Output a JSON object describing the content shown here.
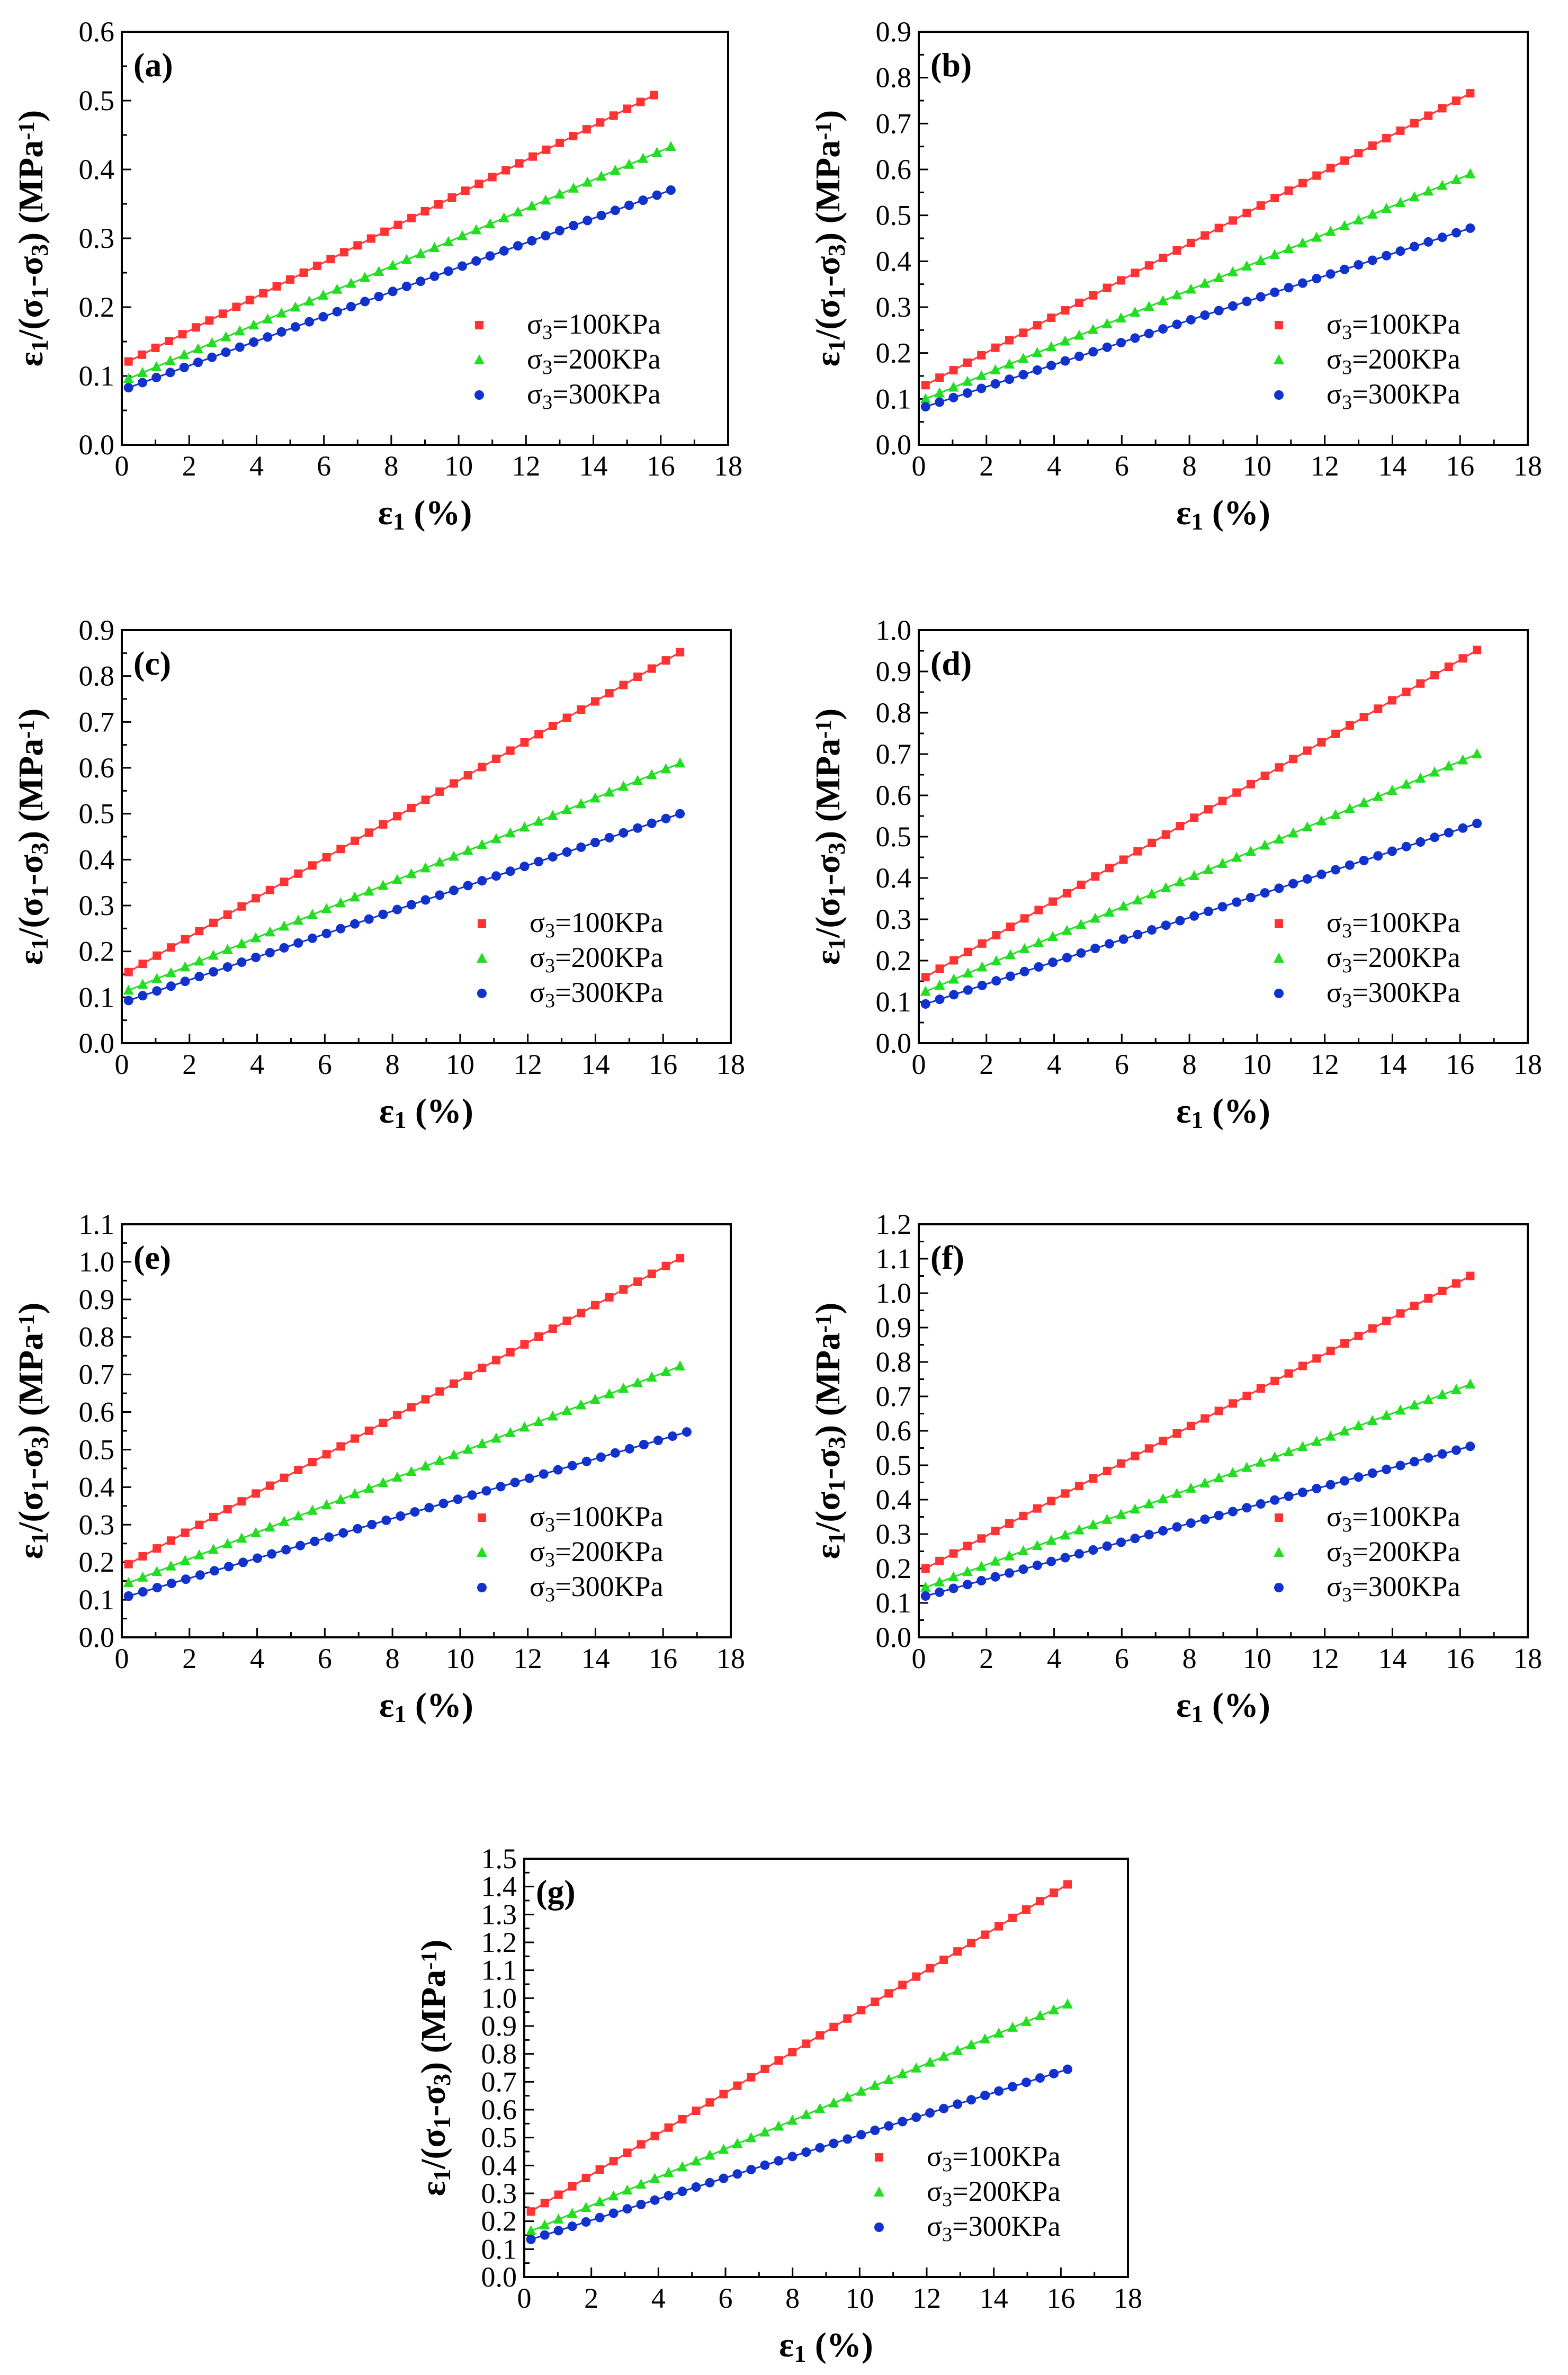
{
  "chart_data": [
    {
      "type": "scatter",
      "panel_label": "(a)",
      "xlabel": "ε1 (%)",
      "ylabel": "ε1/(σ1-σ3) (MPa-1)",
      "xlim": [
        0,
        18
      ],
      "ylim": [
        0,
        0.6
      ],
      "xticks": [
        "0",
        "2",
        "4",
        "6",
        "8",
        "10",
        "12",
        "14",
        "16",
        "18"
      ],
      "yticks": [
        "0.0",
        "0.1",
        "0.2",
        "0.3",
        "0.4",
        "0.5",
        "0.6"
      ],
      "legend_position": "bottom-right",
      "series": [
        {
          "name": "σ3=100KPa",
          "marker": "square",
          "color": "#ff3333",
          "x_start": 0.2,
          "x_end": 15.8,
          "y_start": 0.121,
          "y_end": 0.508
        },
        {
          "name": "σ3=200KPa",
          "marker": "triangle",
          "color": "#22dd22",
          "x_start": 0.2,
          "x_end": 16.3,
          "y_start": 0.096,
          "y_end": 0.433
        },
        {
          "name": "σ3=300KPa",
          "marker": "circle",
          "color": "#1133cc",
          "x_start": 0.2,
          "x_end": 16.3,
          "y_start": 0.083,
          "y_end": 0.37
        }
      ]
    },
    {
      "type": "scatter",
      "panel_label": "(b)",
      "xlabel": "ε1 (%)",
      "ylabel": "ε1/(σ1-σ3) (MPa-1)",
      "xlim": [
        0,
        18
      ],
      "ylim": [
        0,
        0.9
      ],
      "xticks": [
        "0",
        "2",
        "4",
        "6",
        "8",
        "10",
        "12",
        "14",
        "16",
        "18"
      ],
      "yticks": [
        "0.0",
        "0.1",
        "0.2",
        "0.3",
        "0.4",
        "0.5",
        "0.6",
        "0.7",
        "0.8",
        "0.9"
      ],
      "legend_position": "bottom-right",
      "series": [
        {
          "name": "σ3=100KPa",
          "marker": "square",
          "color": "#ff3333",
          "x_start": 0.2,
          "x_end": 16.3,
          "y_start": 0.13,
          "y_end": 0.766
        },
        {
          "name": "σ3=200KPa",
          "marker": "triangle",
          "color": "#22dd22",
          "x_start": 0.2,
          "x_end": 16.3,
          "y_start": 0.1,
          "y_end": 0.59
        },
        {
          "name": "σ3=300KPa",
          "marker": "circle",
          "color": "#1133cc",
          "x_start": 0.2,
          "x_end": 16.3,
          "y_start": 0.083,
          "y_end": 0.472
        }
      ]
    },
    {
      "type": "scatter",
      "panel_label": "(c)",
      "xlabel": "ε1 (%)",
      "ylabel": "ε1/(σ1-σ3) (MPa-1)",
      "xlim": [
        0,
        18
      ],
      "ylim": [
        0,
        0.9
      ],
      "xticks": [
        "0",
        "2",
        "4",
        "6",
        "8",
        "10",
        "12",
        "14",
        "16",
        "18"
      ],
      "yticks": [
        "0.0",
        "0.1",
        "0.2",
        "0.3",
        "0.4",
        "0.5",
        "0.6",
        "0.7",
        "0.8",
        "0.9"
      ],
      "legend_position": "bottom-right",
      "series": [
        {
          "name": "σ3=100KPa",
          "marker": "square",
          "color": "#ff3333",
          "x_start": 0.2,
          "x_end": 16.5,
          "y_start": 0.155,
          "y_end": 0.852
        },
        {
          "name": "σ3=200KPa",
          "marker": "triangle",
          "color": "#22dd22",
          "x_start": 0.2,
          "x_end": 16.5,
          "y_start": 0.115,
          "y_end": 0.61
        },
        {
          "name": "σ3=300KPa",
          "marker": "circle",
          "color": "#1133cc",
          "x_start": 0.2,
          "x_end": 16.5,
          "y_start": 0.093,
          "y_end": 0.5
        }
      ]
    },
    {
      "type": "scatter",
      "panel_label": "(d)",
      "xlabel": "ε1 (%)",
      "ylabel": "ε1/(σ1-σ3) (MPa-1)",
      "xlim": [
        0,
        18
      ],
      "ylim": [
        0,
        1.0
      ],
      "xticks": [
        "0",
        "2",
        "4",
        "6",
        "8",
        "10",
        "12",
        "14",
        "16",
        "18"
      ],
      "yticks": [
        "0.0",
        "0.1",
        "0.2",
        "0.3",
        "0.4",
        "0.5",
        "0.6",
        "0.7",
        "0.8",
        "0.9",
        "1.0"
      ],
      "legend_position": "bottom-right",
      "series": [
        {
          "name": "σ3=100KPa",
          "marker": "square",
          "color": "#ff3333",
          "x_start": 0.2,
          "x_end": 16.5,
          "y_start": 0.16,
          "y_end": 0.952
        },
        {
          "name": "σ3=200KPa",
          "marker": "triangle",
          "color": "#22dd22",
          "x_start": 0.2,
          "x_end": 16.5,
          "y_start": 0.125,
          "y_end": 0.7
        },
        {
          "name": "σ3=300KPa",
          "marker": "circle",
          "color": "#1133cc",
          "x_start": 0.2,
          "x_end": 16.5,
          "y_start": 0.095,
          "y_end": 0.532
        }
      ]
    },
    {
      "type": "scatter",
      "panel_label": "(e)",
      "xlabel": "ε1 (%)",
      "ylabel": "ε1/(σ1-σ3) (MPa-1)",
      "xlim": [
        0,
        18
      ],
      "ylim": [
        0,
        1.1
      ],
      "xticks": [
        "0",
        "2",
        "4",
        "6",
        "8",
        "10",
        "12",
        "14",
        "16",
        "18"
      ],
      "yticks": [
        "0.0",
        "0.1",
        "0.2",
        "0.3",
        "0.4",
        "0.5",
        "0.6",
        "0.7",
        "0.8",
        "0.9",
        "1.0",
        "1.1"
      ],
      "legend_position": "bottom-right",
      "series": [
        {
          "name": "σ3=100KPa",
          "marker": "square",
          "color": "#ff3333",
          "x_start": 0.2,
          "x_end": 16.5,
          "y_start": 0.195,
          "y_end": 1.01
        },
        {
          "name": "σ3=200KPa",
          "marker": "triangle",
          "color": "#22dd22",
          "x_start": 0.2,
          "x_end": 16.5,
          "y_start": 0.145,
          "y_end": 0.722
        },
        {
          "name": "σ3=300KPa",
          "marker": "circle",
          "color": "#1133cc",
          "x_start": 0.2,
          "x_end": 16.7,
          "y_start": 0.11,
          "y_end": 0.547
        }
      ]
    },
    {
      "type": "scatter",
      "panel_label": "(f)",
      "xlabel": "ε1 (%)",
      "ylabel": "ε1/(σ1-σ3) (MPa-1)",
      "xlim": [
        0,
        18
      ],
      "ylim": [
        0,
        1.2
      ],
      "xticks": [
        "0",
        "2",
        "4",
        "6",
        "8",
        "10",
        "12",
        "14",
        "16",
        "18"
      ],
      "yticks": [
        "0.0",
        "0.1",
        "0.2",
        "0.3",
        "0.4",
        "0.5",
        "0.6",
        "0.7",
        "0.8",
        "0.9",
        "1.0",
        "1.1",
        "1.2"
      ],
      "legend_position": "bottom-right",
      "series": [
        {
          "name": "σ3=100KPa",
          "marker": "square",
          "color": "#ff3333",
          "x_start": 0.2,
          "x_end": 16.3,
          "y_start": 0.2,
          "y_end": 1.05
        },
        {
          "name": "σ3=200KPa",
          "marker": "triangle",
          "color": "#22dd22",
          "x_start": 0.2,
          "x_end": 16.3,
          "y_start": 0.145,
          "y_end": 0.735
        },
        {
          "name": "σ3=300KPa",
          "marker": "circle",
          "color": "#1133cc",
          "x_start": 0.2,
          "x_end": 16.3,
          "y_start": 0.12,
          "y_end": 0.555
        }
      ]
    },
    {
      "type": "scatter",
      "panel_label": "(g)",
      "xlabel": "ε1 (%)",
      "ylabel": "ε1/(σ1-σ3) (MPa-1)",
      "xlim": [
        0,
        18
      ],
      "ylim": [
        0,
        1.5
      ],
      "xticks": [
        "0",
        "2",
        "4",
        "6",
        "8",
        "10",
        "12",
        "14",
        "16",
        "18"
      ],
      "yticks": [
        "0.0",
        "0.1",
        "0.2",
        "0.3",
        "0.4",
        "0.5",
        "0.6",
        "0.7",
        "0.8",
        "0.9",
        "1.0",
        "1.1",
        "1.2",
        "1.3",
        "1.4",
        "1.5"
      ],
      "legend_position": "bottom-right",
      "series": [
        {
          "name": "σ3=100KPa",
          "marker": "square",
          "color": "#ff3333",
          "x_start": 0.2,
          "x_end": 16.2,
          "y_start": 0.235,
          "y_end": 1.408
        },
        {
          "name": "σ3=200KPa",
          "marker": "triangle",
          "color": "#22dd22",
          "x_start": 0.2,
          "x_end": 16.2,
          "y_start": 0.165,
          "y_end": 0.978
        },
        {
          "name": "σ3=300KPa",
          "marker": "circle",
          "color": "#1133cc",
          "x_start": 0.2,
          "x_end": 16.2,
          "y_start": 0.135,
          "y_end": 0.745
        }
      ]
    }
  ]
}
